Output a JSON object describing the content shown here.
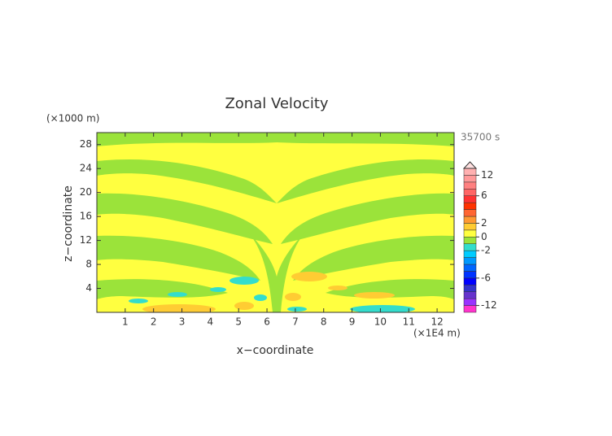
{
  "chart_data": {
    "type": "contour",
    "title": "Zonal Velocity",
    "x_label": "x−coordinate",
    "y_label": "z−coordinate",
    "x_unit": "(×1E4 m)",
    "y_unit": "(×1000 m)",
    "time_label": "35700 s",
    "xlim": [
      0,
      12.6
    ],
    "ylim": [
      0,
      30
    ],
    "xticks": [
      1,
      2,
      3,
      4,
      5,
      6,
      7,
      8,
      9,
      10,
      11,
      12
    ],
    "yticks": [
      4,
      8,
      12,
      16,
      20,
      24,
      28
    ],
    "colorbar": {
      "levels": [
        -14,
        -12,
        -10,
        -8,
        -7,
        -6,
        -5,
        -4,
        -3,
        -2,
        -1,
        0,
        1,
        2,
        3,
        4,
        5,
        6,
        8,
        10,
        12,
        14
      ],
      "colors": [
        "#ff33cc",
        "#9933ff",
        "#6633cc",
        "#3333cc",
        "#0000ff",
        "#0033ff",
        "#0066ff",
        "#0099ff",
        "#00ccff",
        "#33ddcc",
        "#9be33a",
        "#ffff40",
        "#ffcc33",
        "#ff9933",
        "#ff6633",
        "#ff3300",
        "#ff3333",
        "#ff6666",
        "#ff8080",
        "#ff9999",
        "#ffb0b0"
      ],
      "extend_color": "#ffe0e0",
      "ticks": [
        -12,
        -6,
        -2,
        0,
        2,
        6,
        12
      ]
    }
  }
}
